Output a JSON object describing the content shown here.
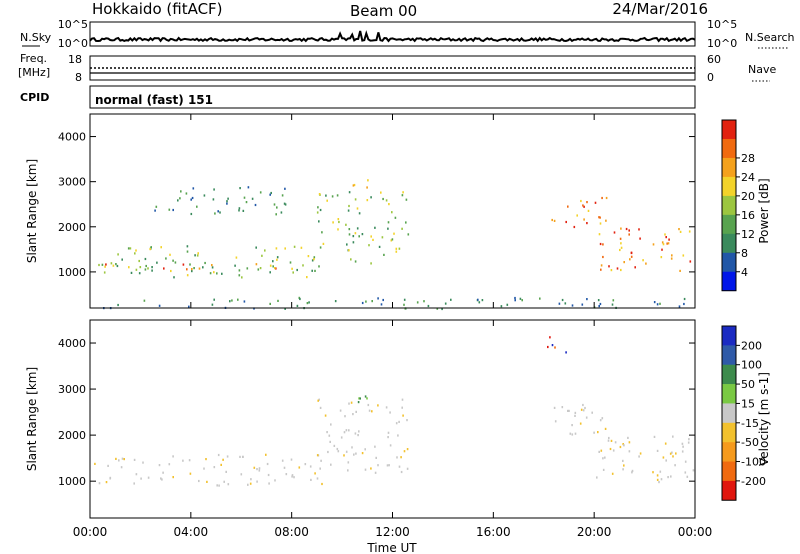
{
  "header": {
    "station": "Hokkaido (fitACF)",
    "beam": "Beam 00",
    "date": "24/Mar/2016"
  },
  "nsky_panel": {
    "left_label": "N.Sky",
    "right_label": "N.Search",
    "left_ticks": [
      "10^5",
      "10^0"
    ],
    "right_ticks": [
      "10^5",
      "10^0"
    ],
    "line_color": "#000000"
  },
  "freq_panel": {
    "left_label_line1": "Freq.",
    "left_label_line2": "[MHz]",
    "right_label": "Nave",
    "left_ticks": [
      "18",
      "8"
    ],
    "right_ticks": [
      "60",
      "0"
    ]
  },
  "cpid": {
    "label": "CPID",
    "value": "normal (fast) 151"
  },
  "chart_data": [
    {
      "type": "heatmap",
      "quantity": "Power",
      "ylabel": "Slant Range [km]",
      "xlabel": "",
      "ylim": [
        200,
        4500
      ],
      "y_ticks": [
        "1000",
        "2000",
        "3000",
        "4000"
      ],
      "colorbar": {
        "label": "Power [dB]",
        "ticks": [
          "4",
          "8",
          "12",
          "16",
          "20",
          "24",
          "28"
        ],
        "colors": [
          "#0016e8",
          "#2157a7",
          "#3a8a5c",
          "#58a34f",
          "#9cc640",
          "#f3d32a",
          "#f4a11c",
          "#f06a10",
          "#e22210"
        ]
      },
      "echo_regions": [
        {
          "t0": 0.0,
          "t1": 9.2,
          "r_lo": 900,
          "r_hi": 1600,
          "level": "medium"
        },
        {
          "t0": 0.5,
          "t1": 9.0,
          "r_lo": 1080,
          "r_hi": 1220,
          "level": "high"
        },
        {
          "t0": 9.0,
          "t1": 12.6,
          "r_lo": 1200,
          "r_hi": 2800,
          "level": "medium"
        },
        {
          "t0": 10.3,
          "t1": 11.0,
          "r_lo": 2700,
          "r_hi": 3100,
          "level": "high"
        },
        {
          "t0": 18.3,
          "t1": 20.5,
          "r_lo": 2000,
          "r_hi": 2700,
          "level": "high"
        },
        {
          "t0": 20.0,
          "t1": 24.0,
          "r_lo": 1000,
          "r_hi": 2000,
          "level": "high"
        },
        {
          "t0": 2.5,
          "t1": 8.0,
          "r_lo": 2300,
          "r_hi": 2900,
          "level": "low"
        },
        {
          "t0": 0.0,
          "t1": 24.0,
          "r_lo": 200,
          "r_hi": 450,
          "level": "low"
        }
      ]
    },
    {
      "type": "heatmap",
      "quantity": "Velocity",
      "ylabel": "Slant Range [km]",
      "xlabel": "Time UT",
      "ylim": [
        200,
        4500
      ],
      "y_ticks": [
        "1000",
        "2000",
        "3000",
        "4000"
      ],
      "x_ticks": [
        "00:00",
        "04:00",
        "08:00",
        "12:00",
        "16:00",
        "20:00",
        "00:00"
      ],
      "colorbar": {
        "label": "Velocity [m s-1]",
        "ticks": [
          "200",
          "100",
          "50",
          "15",
          "-15",
          "-50",
          "-100",
          "-200"
        ],
        "colors": [
          "#1b2bc2",
          "#2f5aa8",
          "#3d8b4c",
          "#7ac943",
          "#c8c8c8",
          "#f2c12e",
          "#f59a1d",
          "#f06a10",
          "#e0160e"
        ]
      },
      "echo_regions": [
        {
          "t0": 0.0,
          "t1": 9.2,
          "r_lo": 900,
          "r_hi": 1600,
          "level": "ground"
        },
        {
          "t0": 9.0,
          "t1": 12.6,
          "r_lo": 1200,
          "r_hi": 2800,
          "level": "ground"
        },
        {
          "t0": 10.3,
          "t1": 11.0,
          "r_lo": 2700,
          "r_hi": 3100,
          "level": "positive"
        },
        {
          "t0": 18.3,
          "t1": 20.5,
          "r_lo": 2000,
          "r_hi": 2700,
          "level": "ground"
        },
        {
          "t0": 20.0,
          "t1": 24.0,
          "r_lo": 1000,
          "r_hi": 2000,
          "level": "ground"
        },
        {
          "t0": 18.0,
          "t1": 19.3,
          "r_lo": 3800,
          "r_hi": 4200,
          "level": "negative"
        }
      ]
    }
  ]
}
